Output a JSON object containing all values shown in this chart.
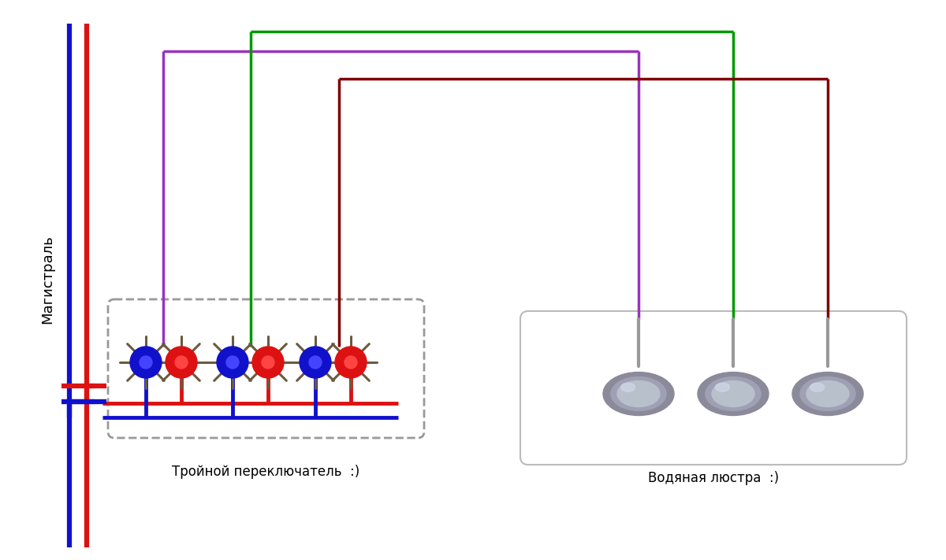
{
  "bg_color": "#ffffff",
  "fig_width": 12.0,
  "fig_height": 7.11,
  "dpi": 100,
  "purple_color": "#9933bb",
  "green_color": "#009900",
  "darkred_color": "#800000",
  "blue_color": "#1111cc",
  "red_color": "#dd1111",
  "gray_color": "#999999",
  "magistral_label": "Магистраль",
  "switch_label": "Тройной переключатель  :)",
  "chandelier_label": "Водяная люстра  :)"
}
